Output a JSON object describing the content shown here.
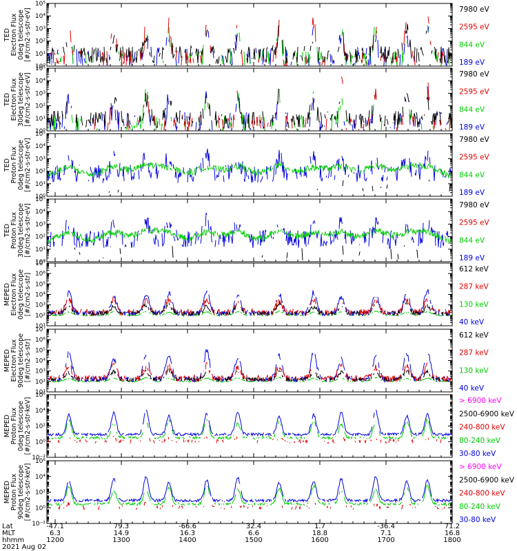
{
  "chart_data": {
    "type": "line",
    "date_label": "2021 Aug 02",
    "x_axis": {
      "row_labels": [
        "Lat",
        "MLT",
        "hhmm"
      ],
      "ticks": [
        {
          "lat": "-47.1",
          "mlt": "6.3",
          "hhmm": "1200"
        },
        {
          "lat": "79.3",
          "mlt": "14.9",
          "hhmm": "1300"
        },
        {
          "lat": "-66.6",
          "mlt": "16.3",
          "hhmm": "1400"
        },
        {
          "lat": "32.4",
          "mlt": "6.6",
          "hhmm": "1500"
        },
        {
          "lat": "1.7",
          "mlt": "18.8",
          "hhmm": "1600"
        },
        {
          "lat": "-36.4",
          "mlt": "7.1",
          "hhmm": "1700"
        },
        {
          "lat": "71.2",
          "mlt": "16.8",
          "hhmm": "1800"
        }
      ]
    },
    "panels": [
      {
        "ylabel": [
          "TED",
          "Electron Flux",
          "0deg telescope",
          "[#/cm2-s-str-eV]"
        ],
        "ylog": [
          0,
          5
        ],
        "yticks": [
          "10⁰",
          "10¹",
          "10²",
          "10³",
          "10⁴",
          "10⁵"
        ],
        "series": [
          {
            "name": "7980 eV",
            "color": "#000000"
          },
          {
            "name": "2595 eV",
            "color": "#dd0000"
          },
          {
            "name": "844 eV",
            "color": "#00cc00"
          },
          {
            "name": "189 eV",
            "color": "#0000dd"
          }
        ]
      },
      {
        "ylabel": [
          "TED",
          "Electron Flux",
          "30deg telescope",
          "[#/cm2-s-str-eV]"
        ],
        "ylog": [
          0,
          5
        ],
        "yticks": [
          "10⁰",
          "10¹",
          "10²",
          "10³",
          "10⁴",
          "10⁵"
        ],
        "series": [
          {
            "name": "7980 eV",
            "color": "#000000"
          },
          {
            "name": "2595 eV",
            "color": "#dd0000"
          },
          {
            "name": "844 eV",
            "color": "#00cc00"
          },
          {
            "name": "189 eV",
            "color": "#0000dd"
          }
        ]
      },
      {
        "ylabel": [
          "TED",
          "Proton Flux",
          "0deg telescope",
          "[#/cm2-s-str-eV]"
        ],
        "ylog": [
          0,
          5
        ],
        "yticks": [
          "10⁰",
          "10¹",
          "10²",
          "10³",
          "10⁴",
          "10⁵"
        ],
        "series": [
          {
            "name": "7980 eV",
            "color": "#000000"
          },
          {
            "name": "2595 eV",
            "color": "#dd0000"
          },
          {
            "name": "844 eV",
            "color": "#00cc00"
          },
          {
            "name": "189 eV",
            "color": "#0000dd"
          }
        ]
      },
      {
        "ylabel": [
          "TED",
          "Proton Flux",
          "30deg telescope",
          "[#/cm2-s-str-eV]"
        ],
        "ylog": [
          0,
          5
        ],
        "yticks": [
          "10⁰",
          "10¹",
          "10²",
          "10³",
          "10⁴",
          "10⁵"
        ],
        "series": [
          {
            "name": "7980 eV",
            "color": "#000000"
          },
          {
            "name": "2595 eV",
            "color": "#dd0000"
          },
          {
            "name": "844 eV",
            "color": "#00cc00"
          },
          {
            "name": "189 eV",
            "color": "#0000dd"
          }
        ]
      },
      {
        "ylabel": [
          "MEPED",
          "Electron Flux",
          "0deg telescope",
          "[#/cm2-s-str]"
        ],
        "ylog": [
          1,
          7
        ],
        "yticks": [
          "10¹",
          "10²",
          "10³",
          "10⁴",
          "10⁵",
          "10⁶",
          "10⁷"
        ],
        "series": [
          {
            "name": "612 keV",
            "color": "#000000"
          },
          {
            "name": "287 keV",
            "color": "#dd0000"
          },
          {
            "name": "130 keV",
            "color": "#00cc00"
          },
          {
            "name": "40 keV",
            "color": "#0000dd"
          }
        ]
      },
      {
        "ylabel": [
          "MEPED",
          "Electron Flux",
          "90deg telescope",
          "[#/cm2-s-str]"
        ],
        "ylog": [
          1,
          7
        ],
        "yticks": [
          "10¹",
          "10²",
          "10³",
          "10⁴",
          "10⁵",
          "10⁶",
          "10⁷"
        ],
        "series": [
          {
            "name": "612 keV",
            "color": "#000000"
          },
          {
            "name": "287 keV",
            "color": "#dd0000"
          },
          {
            "name": "130 keV",
            "color": "#00cc00"
          },
          {
            "name": "40 keV",
            "color": "#0000dd"
          }
        ]
      },
      {
        "ylabel": [
          "MEPED",
          "Proton Flux",
          "0deg telescope",
          "[#/cm2-s-str-keV]"
        ],
        "ylog": [
          -3,
          6
        ],
        "yticks": [
          "10⁻²",
          "10⁰",
          "10²",
          "10⁴",
          "10⁶"
        ],
        "series": [
          {
            "name": "> 6900 keV",
            "color": "#ff00ff"
          },
          {
            "name": "2500-6900 keV",
            "color": "#000000"
          },
          {
            "name": "240-800 keV",
            "color": "#dd0000"
          },
          {
            "name": "80-240 keV",
            "color": "#00cc00"
          },
          {
            "name": "30-80 keV",
            "color": "#0000dd"
          }
        ]
      },
      {
        "ylabel": [
          "MEPED",
          "Proton Flux",
          "90deg telescope",
          "[#/cm2-s-str-keV]"
        ],
        "ylog": [
          -3,
          6
        ],
        "yticks": [
          "10⁻²",
          "10⁰",
          "10²",
          "10⁴",
          "10⁶"
        ],
        "series": [
          {
            "name": "> 6900 keV",
            "color": "#ff00ff"
          },
          {
            "name": "2500-6900 keV",
            "color": "#000000"
          },
          {
            "name": "240-800 keV",
            "color": "#dd0000"
          },
          {
            "name": "80-240 keV",
            "color": "#00cc00"
          },
          {
            "name": "30-80 keV",
            "color": "#0000dd"
          }
        ]
      }
    ]
  }
}
